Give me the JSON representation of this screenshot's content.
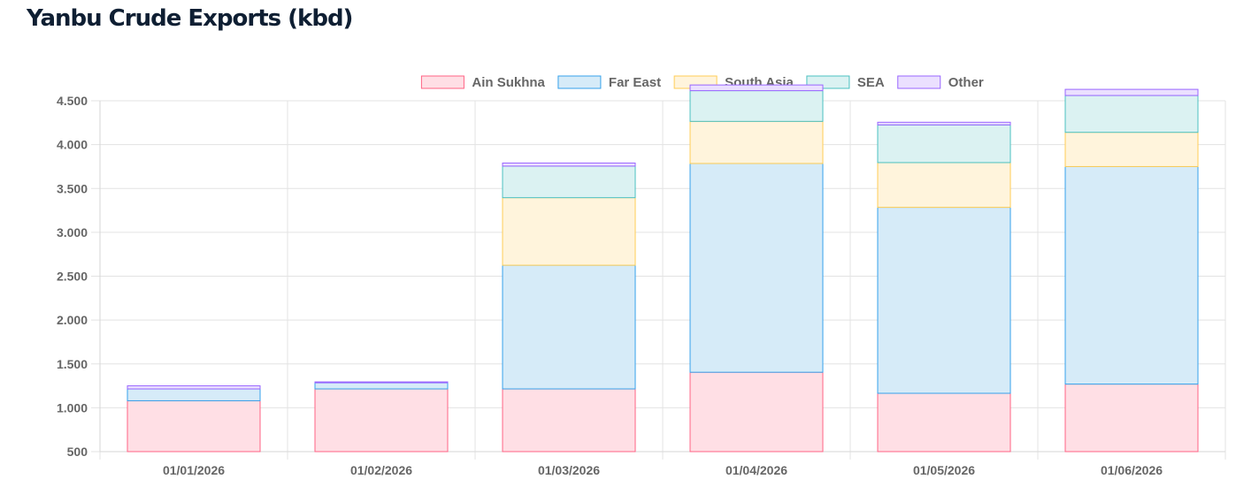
{
  "page": {
    "title": "Yanbu Crude Exports (kbd)"
  },
  "chart_data": {
    "type": "bar",
    "stacked": true,
    "categories": [
      "01/01/2026",
      "01/02/2026",
      "01/03/2026",
      "01/04/2026",
      "01/05/2026",
      "01/06/2026"
    ],
    "series": [
      {
        "name": "Ain Sukhna",
        "values": [
          580,
          715,
          715,
          905,
          665,
          770
        ],
        "color": "#ff6384",
        "fill": "#ffdfe5"
      },
      {
        "name": "Far East",
        "values": [
          135,
          70,
          1410,
          2380,
          2120,
          2480
        ],
        "color": "#36a2eb",
        "fill": "#d6ebf8"
      },
      {
        "name": "South Asia",
        "values": [
          0,
          0,
          770,
          480,
          510,
          390
        ],
        "color": "#ffcd56",
        "fill": "#fff4dc"
      },
      {
        "name": "SEA",
        "values": [
          0,
          0,
          360,
          350,
          430,
          420
        ],
        "color": "#4bc0c0",
        "fill": "#dbf2f2"
      },
      {
        "name": "Other",
        "values": [
          35,
          10,
          35,
          65,
          30,
          70
        ],
        "color": "#9966ff",
        "fill": "#ebe0ff"
      }
    ],
    "y_ticks": [
      "4.500",
      "4.000",
      "3.500",
      "3.000",
      "2.500",
      "2.000",
      "1.500",
      "1.000",
      "500"
    ],
    "ylim": [
      500,
      4500
    ],
    "grid": true,
    "legend": "top-center",
    "xlabel": "",
    "ylabel": ""
  }
}
